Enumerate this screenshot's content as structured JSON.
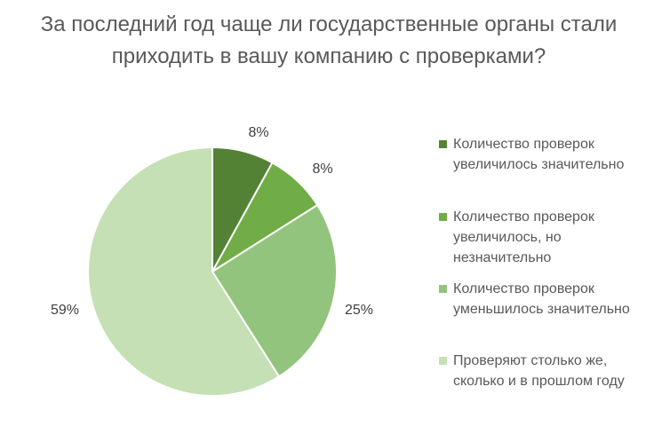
{
  "chart_data": {
    "type": "pie",
    "title": "За последний год чаще ли государственные органы стали приходить в вашу компанию с проверками?",
    "categories": [
      "Количество проверок увеличилось значительно",
      "Количество проверок увеличилось, но незначительно",
      "Количество проверок уменьшилось значительно",
      "Проверяют столько же, сколько и в прошлом году"
    ],
    "values": [
      8,
      8,
      25,
      59
    ],
    "data_labels": [
      "8%",
      "8%",
      "25%",
      "59%"
    ],
    "colors": [
      "#548235",
      "#70ad47",
      "#93c47d",
      "#c5e0b4"
    ],
    "legend_position": "right",
    "start_angle_deg": 0,
    "direction": "clockwise"
  }
}
